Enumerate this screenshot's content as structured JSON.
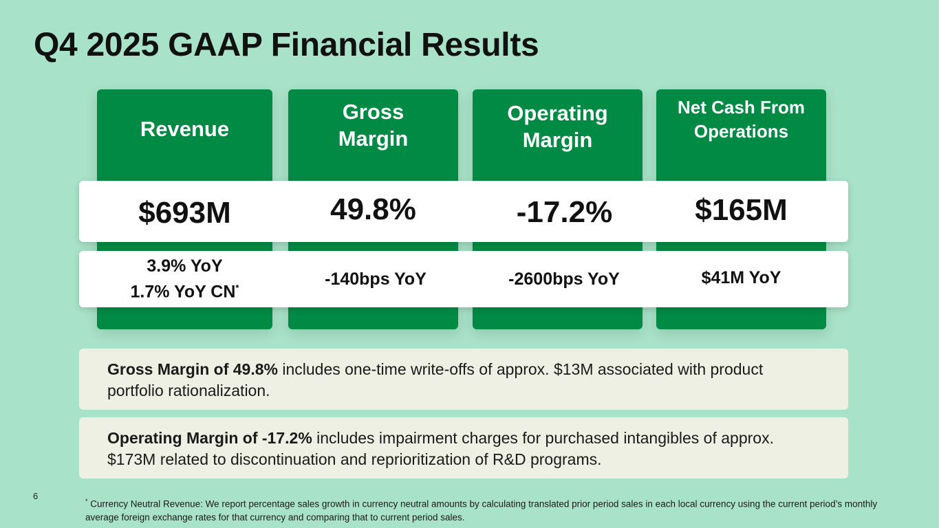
{
  "slide": {
    "title": "Q4 2025 GAAP Financial Results",
    "page_number": "6"
  },
  "metrics": [
    {
      "header_lines": [
        "Revenue"
      ],
      "value": "$693M",
      "yoy_lines": [
        "3.9% YoY",
        "1.7% YoY CN"
      ],
      "yoy_marker": "*"
    },
    {
      "header_lines": [
        "Gross",
        "Margin"
      ],
      "value": "49.8%",
      "yoy_lines": [
        "-140bps YoY"
      ]
    },
    {
      "header_lines": [
        "Operating",
        "Margin"
      ],
      "value": "-17.2%",
      "yoy_lines": [
        "-2600bps YoY"
      ]
    },
    {
      "header_lines": [
        "Net Cash From",
        "Operations"
      ],
      "value": "$165M",
      "yoy_lines": [
        "$41M YoY"
      ]
    }
  ],
  "notes": [
    {
      "bold": "Gross Margin of 49.8%",
      "text": " includes one-time write-offs of approx. $13M associated with product portfolio rationalization."
    },
    {
      "bold": "Operating Margin of -17.2%",
      "text": " includes impairment charges for purchased intangibles of approx. $173M related to discontinuation and reprioritization of R&D programs."
    }
  ],
  "footnote": {
    "marker": "*",
    "text": " Currency Neutral Revenue: We report percentage sales growth in currency neutral amounts by calculating translated prior period sales in each local currency using the current period’s monthly average foreign exchange rates for that currency and comparing that to current period sales."
  },
  "colors": {
    "background": "#a8e2c8",
    "card_green": "#008a44",
    "band_white": "#ffffff",
    "note_bg": "#eef0e4"
  }
}
